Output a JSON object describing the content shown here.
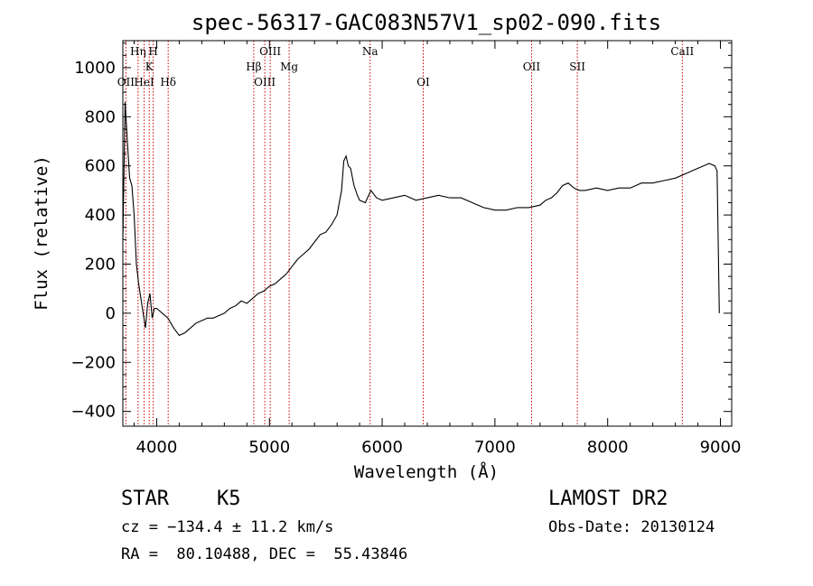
{
  "chart_data": {
    "type": "line",
    "title": "spec-56317-GAC083N57V1_sp02-090.fits",
    "xlabel": "Wavelength (Å)",
    "ylabel": "Flux (relative)",
    "xlim": [
      3700,
      9100
    ],
    "ylim": [
      -460,
      1110
    ],
    "xticks": [
      4000,
      5000,
      6000,
      7000,
      8000,
      9000
    ],
    "yticks": [
      -400,
      -200,
      0,
      200,
      400,
      600,
      800,
      1000
    ],
    "xtick_labels": [
      "4000",
      "5000",
      "6000",
      "7000",
      "8000",
      "9000"
    ],
    "ytick_labels": [
      "−400",
      "−200",
      "0",
      "200",
      "400",
      "600",
      "800",
      "1000"
    ],
    "grid": false,
    "colors": {
      "spectrum": "#000000",
      "lines": "#cc0000"
    },
    "spectral_lines": [
      {
        "label": "OII",
        "x": 3727,
        "row": 2
      },
      {
        "label": "Hη",
        "x": 3835,
        "row": 0
      },
      {
        "label": "HeI",
        "x": 3889,
        "row": 2
      },
      {
        "label": "K",
        "x": 3934,
        "row": 1
      },
      {
        "label": "H",
        "x": 3969,
        "row": 0
      },
      {
        "label": "Hδ",
        "x": 4102,
        "row": 2
      },
      {
        "label": "Hβ",
        "x": 4861,
        "row": 1
      },
      {
        "label": "OIII",
        "x": 4959,
        "row": 2
      },
      {
        "label": "OIII",
        "x": 5007,
        "row": 0
      },
      {
        "label": "Mg",
        "x": 5175,
        "row": 1
      },
      {
        "label": "Na",
        "x": 5893,
        "row": 0
      },
      {
        "label": "OI",
        "x": 6364,
        "row": 2
      },
      {
        "label": "OII",
        "x": 7325,
        "row": 1
      },
      {
        "label": "SII",
        "x": 7731,
        "row": 1
      },
      {
        "label": "CaII",
        "x": 8662,
        "row": 0
      }
    ],
    "series": [
      {
        "x": [
          3700,
          3720,
          3740,
          3760,
          3780,
          3800,
          3820,
          3840,
          3860,
          3880,
          3900,
          3920,
          3940,
          3960,
          3980,
          4000,
          4050,
          4100,
          4150,
          4200,
          4250,
          4300,
          4350,
          4400,
          4450,
          4500,
          4550,
          4600,
          4650,
          4700,
          4750,
          4800,
          4850,
          4900,
          4950,
          5000,
          5050,
          5100,
          5150,
          5200,
          5250,
          5300,
          5350,
          5400,
          5450,
          5500,
          5550,
          5600,
          5640,
          5660,
          5680,
          5700,
          5720,
          5750,
          5780,
          5800,
          5850,
          5900,
          5950,
          6000,
          6100,
          6200,
          6300,
          6400,
          6500,
          6600,
          6700,
          6800,
          6900,
          7000,
          7100,
          7200,
          7300,
          7400,
          7450,
          7500,
          7550,
          7600,
          7650,
          7700,
          7750,
          7800,
          7900,
          8000,
          8100,
          8200,
          8300,
          8400,
          8500,
          8600,
          8700,
          8750,
          8800,
          8850,
          8900,
          8950,
          8970,
          8990
        ],
        "y": [
          300,
          860,
          700,
          550,
          520,
          400,
          200,
          120,
          60,
          0,
          -60,
          40,
          80,
          -20,
          20,
          20,
          0,
          -20,
          -60,
          -90,
          -80,
          -60,
          -40,
          -30,
          -20,
          -20,
          -10,
          0,
          20,
          30,
          50,
          40,
          60,
          80,
          90,
          110,
          120,
          140,
          160,
          190,
          220,
          240,
          260,
          290,
          320,
          330,
          360,
          400,
          500,
          620,
          640,
          600,
          590,
          520,
          480,
          460,
          450,
          500,
          470,
          460,
          470,
          480,
          460,
          470,
          480,
          470,
          470,
          450,
          430,
          420,
          420,
          430,
          430,
          440,
          460,
          470,
          490,
          520,
          530,
          510,
          500,
          500,
          510,
          500,
          510,
          510,
          530,
          530,
          540,
          550,
          570,
          580,
          590,
          600,
          610,
          600,
          580,
          0
        ]
      }
    ]
  },
  "info": {
    "object_class": "STAR",
    "subclass": "K5",
    "survey": "LAMOST DR2",
    "redshift": "cz = −134.4 ± 11.2 km/s",
    "obs_date": "Obs-Date: 20130124",
    "coords": "RA =  80.10488, DEC =  55.43846"
  }
}
